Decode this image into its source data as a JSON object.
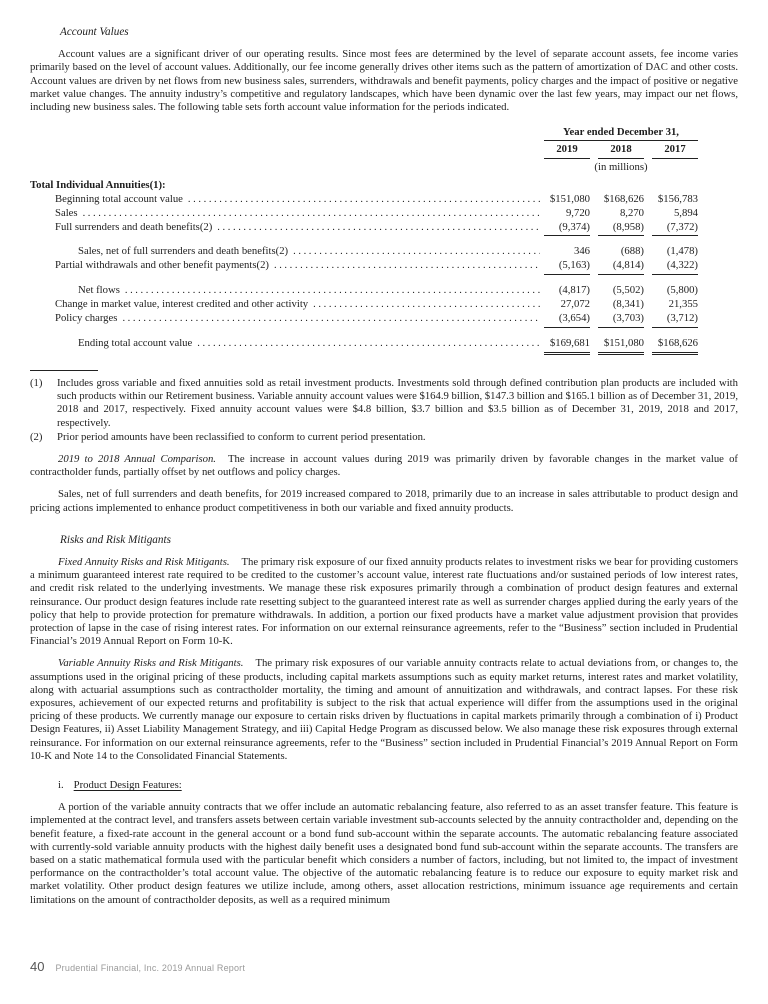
{
  "doc": {
    "heading_account_values": "Account Values",
    "para_account_values": "Account values are a significant driver of our operating results. Since most fees are determined by the level of separate account assets, fee income varies primarily based on the level of account values. Additionally, our fee income generally drives other items such as the pattern of amortization of DAC and other costs. Account values are driven by net flows from new business sales, surrenders, withdrawals and benefit payments, policy charges and the impact of positive or negative market value changes. The annuity industry’s competitive and regulatory landscapes, which have been dynamic over the last few years, may impact our net flows, including new business sales. The following table sets forth account value information for the periods indicated.",
    "comparison_lead": "2019 to 2018 Annual Comparison.",
    "comparison_body": "The increase in account values during 2019 was primarily driven by favorable changes in the market value of contractholder funds, partially offset by net outflows and policy charges.",
    "sales_para": "Sales, net of full surrenders and death benefits, for 2019 increased compared to 2018, primarily due to an increase in sales attributable to product design and pricing actions implemented to enhance product competitiveness in both our variable and fixed annuity products.",
    "heading_risks": "Risks and Risk Mitigants",
    "fixed_lead": "Fixed Annuity Risks and Risk Mitigants.",
    "fixed_body": "The primary risk exposure of our fixed annuity products relates to investment risks we bear for providing customers a minimum guaranteed interest rate required to be credited to the customer’s account value, interest rate fluctuations and/or sustained periods of low interest rates, and credit risk related to the underlying investments. We manage these risk exposures primarily through a combination of product design features and external reinsurance. Our product design features include rate resetting subject to the guaranteed interest rate as well as surrender charges applied during the early years of the policy that help to provide protection for premature withdrawals. In addition, a portion our fixed products have a market value adjustment provision that provides protection of lapse in the case of rising interest rates. For information on our external reinsurance agreements, refer to the “Business” section included in Prudential Financial’s 2019 Annual Report on Form 10-K.",
    "variable_lead": "Variable Annuity Risks and Risk Mitigants.",
    "variable_body": "The primary risk exposures of our variable annuity contracts relate to actual deviations from, or changes to, the assumptions used in the original pricing of these products, including capital markets assumptions such as equity market returns, interest rates and market volatility, along with actuarial assumptions such as contractholder mortality, the timing and amount of annuitization and withdrawals, and contract lapses. For these risk exposures, achievement of our expected returns and profitability is subject to the risk that actual experience will differ from the assumptions used in the original pricing of these products. We currently manage our exposure to certain risks driven by fluctuations in capital markets primarily through a combination of i) Product Design Features, ii) Asset Liability Management Strategy, and iii) Capital Hedge Program as discussed below. We also manage these risk exposures through external reinsurance. For information on our external reinsurance agreements, refer to the “Business” section included in Prudential Financial’s 2019 Annual Report on Form 10-K and Note 14 to the Consolidated Financial Statements.",
    "list_marker": "i.",
    "list_label": "Product Design Features:",
    "final_para": "A portion of the variable annuity contracts that we offer include an automatic rebalancing feature, also referred to as an asset transfer feature. This feature is implemented at the contract level, and transfers assets between certain variable investment sub-accounts selected by the annuity contractholder and, depending on the benefit feature, a fixed-rate account in the general account or a bond fund sub-account within the separate accounts. The automatic rebalancing feature associated with currently-sold variable annuity products with the highest daily benefit uses a designated bond fund sub-account within the separate accounts. The transfers are based on a static mathematical formula used with the particular benefit which considers a number of factors, including, but not limited to, the impact of investment performance on the contractholder’s total account value. The objective of the automatic rebalancing feature is to reduce our exposure to equity market risk and market volatility. Other product design features we utilize include, among others, asset allocation restrictions, minimum issuance age requirements and certain limitations on the amount of contractholder deposits, as well as a required minimum"
  },
  "table": {
    "period_label": "Year ended December 31,",
    "years": [
      "2019",
      "2018",
      "2017"
    ],
    "units_label": "(in millions)",
    "rows": [
      {
        "label": "Total Individual Annuities(1):",
        "indent": 0,
        "bold": true,
        "leaders": false,
        "values": [
          "",
          "",
          ""
        ]
      },
      {
        "label": "Beginning total account value",
        "indent": 1,
        "values": [
          "$151,080",
          "$168,626",
          "$156,783"
        ]
      },
      {
        "label": "Sales",
        "indent": 1,
        "values": [
          "9,720",
          "8,270",
          "5,894"
        ]
      },
      {
        "label": "Full surrenders and death benefits(2)",
        "indent": 1,
        "underline": true,
        "values": [
          "(9,374)",
          "(8,958)",
          "(7,372)"
        ]
      },
      {
        "label": "Sales, net of full surrenders and death benefits(2)",
        "indent": 2,
        "gap": true,
        "values": [
          "346",
          "(688)",
          "(1,478)"
        ]
      },
      {
        "label": "Partial withdrawals and other benefit payments(2)",
        "indent": 1,
        "underline": true,
        "values": [
          "(5,163)",
          "(4,814)",
          "(4,322)"
        ]
      },
      {
        "label": "Net flows",
        "indent": 2,
        "gap": true,
        "values": [
          "(4,817)",
          "(5,502)",
          "(5,800)"
        ]
      },
      {
        "label": "Change in market value, interest credited and other activity",
        "indent": 1,
        "values": [
          "27,072",
          "(8,341)",
          "21,355"
        ]
      },
      {
        "label": "Policy charges",
        "indent": 1,
        "underline": true,
        "values": [
          "(3,654)",
          "(3,703)",
          "(3,712)"
        ]
      },
      {
        "label": "Ending total account value",
        "indent": 2,
        "gap": true,
        "double_underline": true,
        "values": [
          "$169,681",
          "$151,080",
          "$168,626"
        ]
      }
    ]
  },
  "footnotes": [
    {
      "marker": "(1)",
      "text": "Includes gross variable and fixed annuities sold as retail investment products. Investments sold through defined contribution plan products are included with such products within our Retirement business. Variable annuity account values were $164.9 billion, $147.3 billion and $165.1 billion as of December 31, 2019, 2018 and 2017, respectively. Fixed annuity account values were $4.8 billion, $3.7 billion and $3.5 billion as of December 31, 2019, 2018 and 2017, respectively."
    },
    {
      "marker": "(2)",
      "text": "Prior period amounts have been reclassified to conform to current period presentation."
    }
  ],
  "footer": {
    "page_number": "40",
    "label": "Prudential Financial, Inc. 2019 Annual Report"
  }
}
